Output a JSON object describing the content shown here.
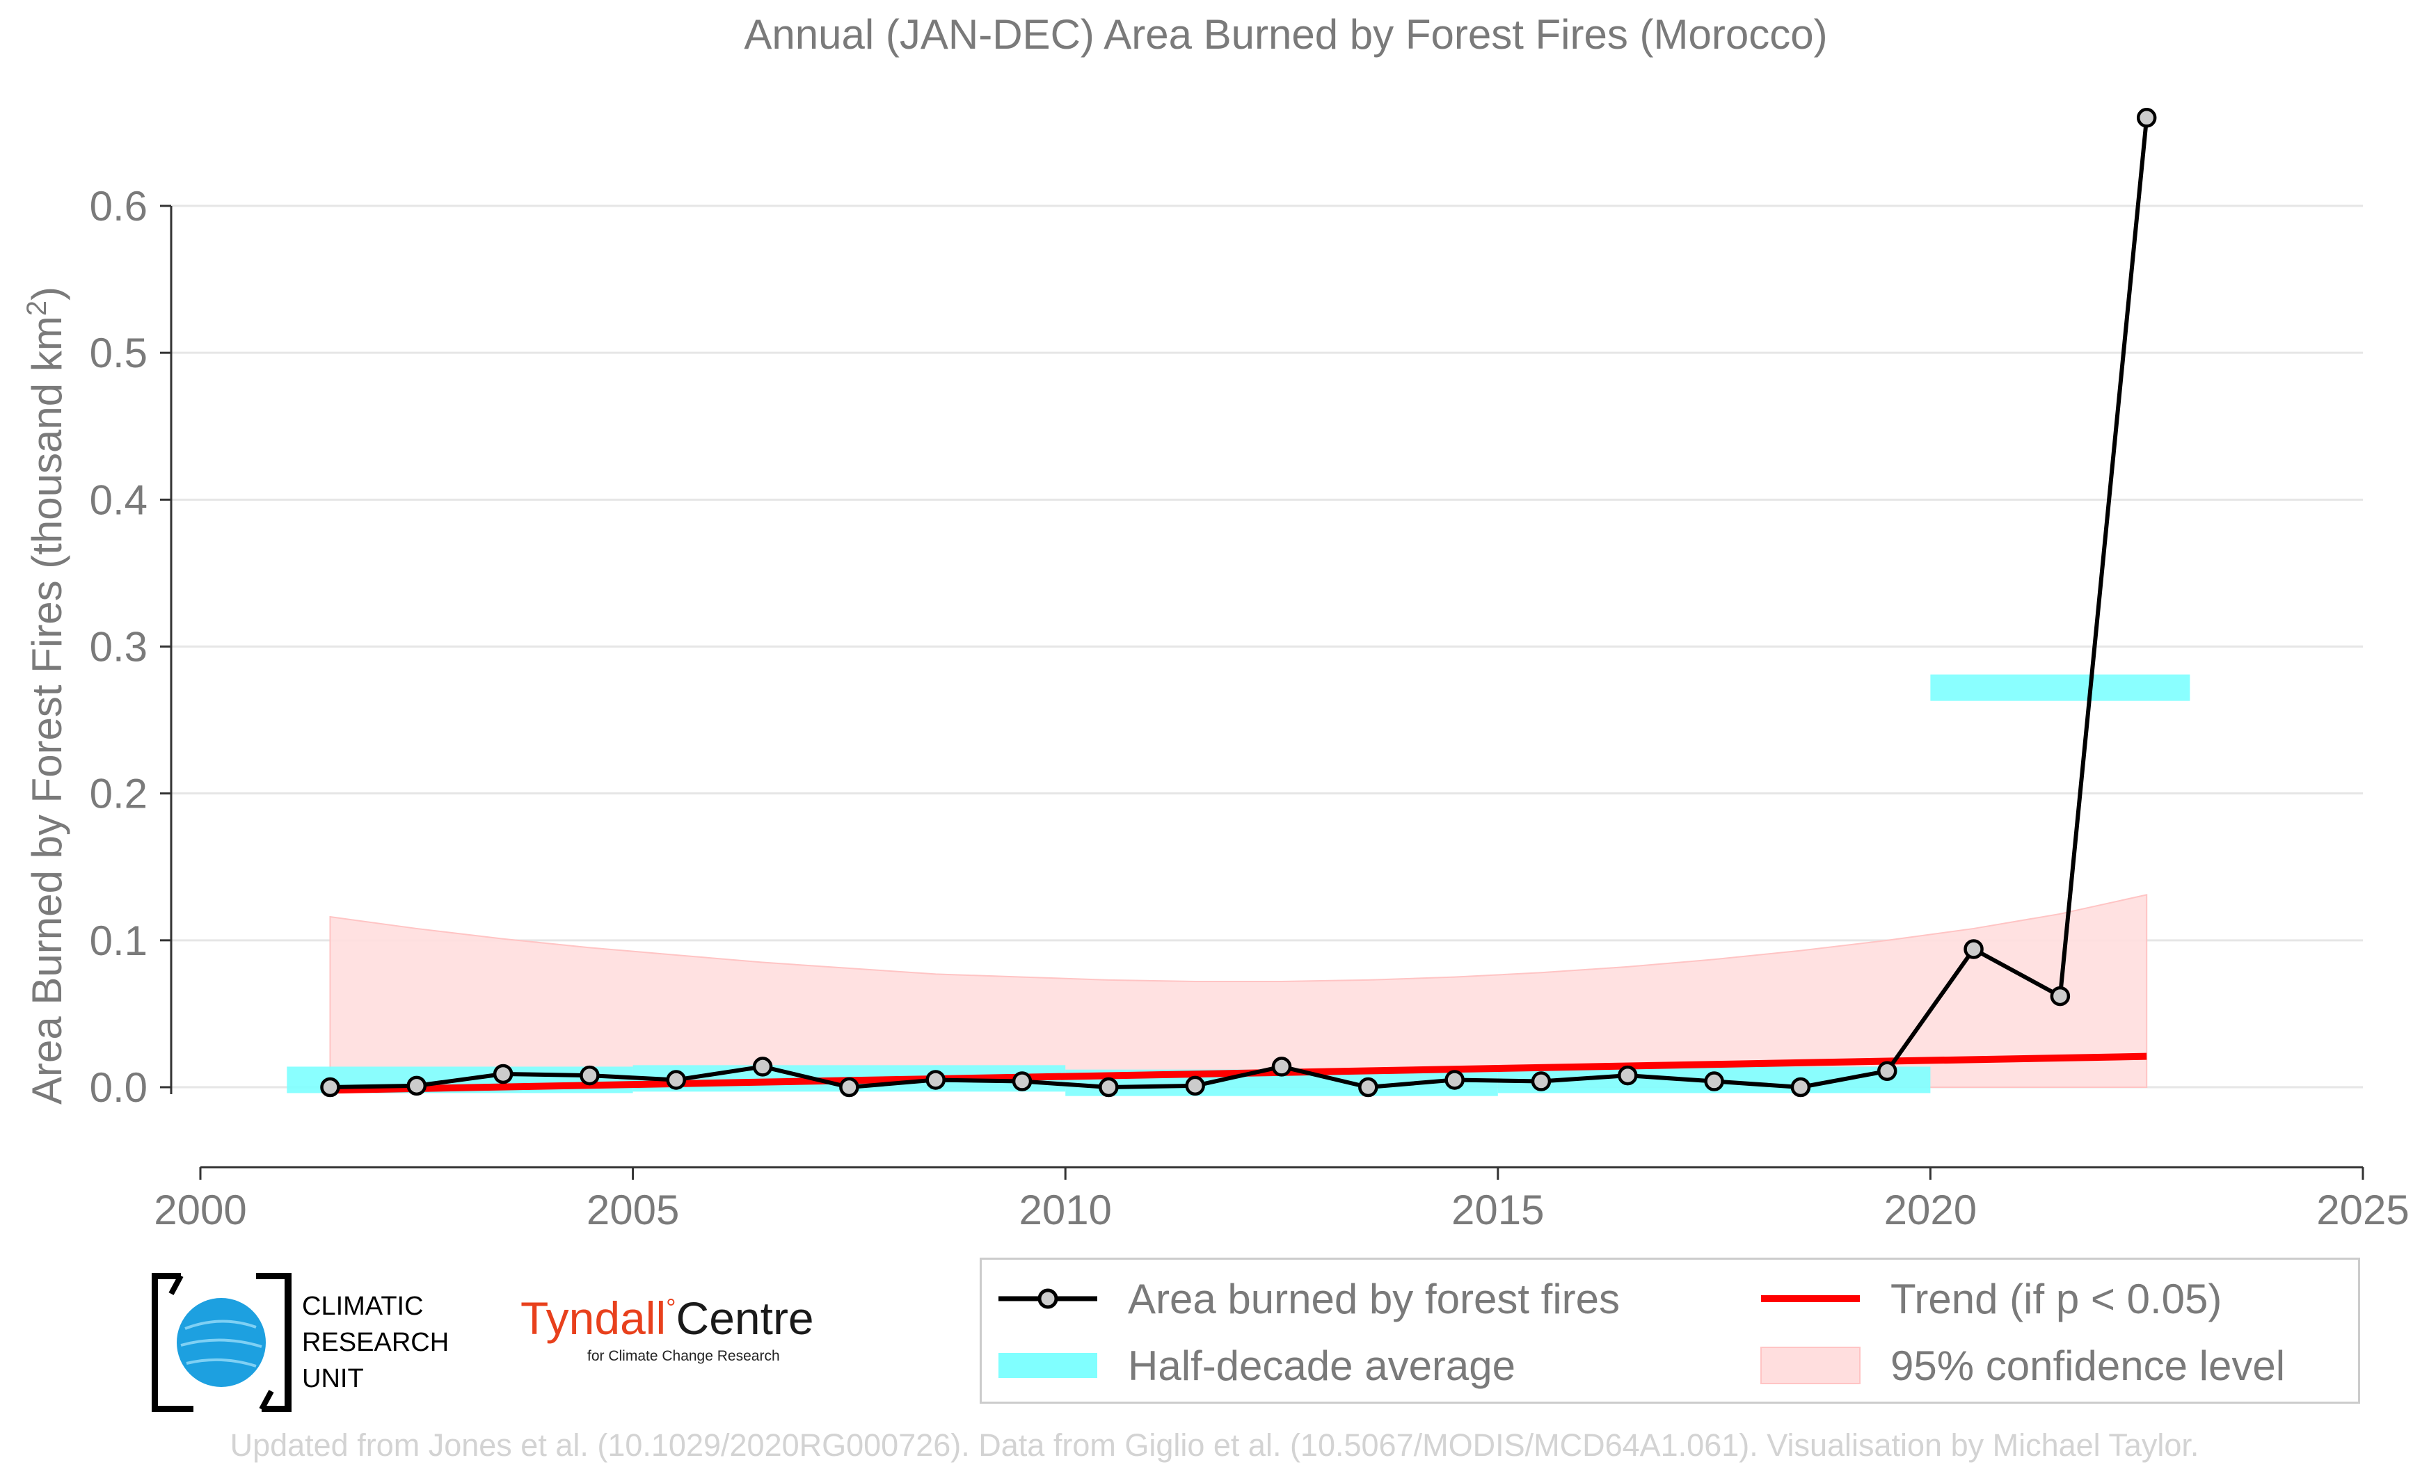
{
  "chart_data": {
    "type": "line",
    "title": "Annual (JAN-DEC) Area Burned by Forest Fires (Morocco)",
    "ylabel_main": "Area Burned by Forest Fires (thousand km",
    "ylabel_sup": "2",
    "ylabel_close": ")",
    "xlabel": "",
    "xlim": [
      2000,
      2025
    ],
    "ylim": [
      -0.055,
      0.68
    ],
    "x_ticks": [
      2000,
      2005,
      2010,
      2015,
      2020,
      2025
    ],
    "y_ticks": [
      0.0,
      0.1,
      0.2,
      0.3,
      0.4,
      0.5,
      0.6
    ],
    "y_tick_labels": [
      "0.0",
      "0.1",
      "0.2",
      "0.3",
      "0.4",
      "0.5",
      "0.6"
    ],
    "grid": "horizontal",
    "series": [
      {
        "name": "Area burned by forest fires",
        "color": "#000000",
        "marker_fill": "#cccccc",
        "x": [
          2001.5,
          2002.5,
          2003.5,
          2004.5,
          2005.5,
          2006.5,
          2007.5,
          2008.5,
          2009.5,
          2010.5,
          2011.5,
          2012.5,
          2013.5,
          2014.5,
          2015.5,
          2016.5,
          2017.5,
          2018.5,
          2019.5,
          2020.5,
          2021.5,
          2022.5
        ],
        "values": [
          0.0,
          0.001,
          0.009,
          0.008,
          0.005,
          0.014,
          0.0,
          0.005,
          0.004,
          0.0,
          0.001,
          0.014,
          0.0,
          0.005,
          0.004,
          0.008,
          0.004,
          0.0,
          0.011,
          0.094,
          0.062,
          0.66
        ]
      }
    ],
    "half_decade_average": {
      "name": "Half-decade average",
      "color": "#80ffff",
      "segments": [
        {
          "x0": 2001,
          "x1": 2005,
          "y": 0.005
        },
        {
          "x0": 2005,
          "x1": 2010,
          "y": 0.006
        },
        {
          "x0": 2010,
          "x1": 2015,
          "y": 0.003
        },
        {
          "x0": 2015,
          "x1": 2020,
          "y": 0.005
        },
        {
          "x0": 2020,
          "x1": 2023,
          "y": 0.272
        }
      ]
    },
    "trend": {
      "name": "Trend (if p < 0.05)",
      "color": "#ff0000",
      "x0": 2001.5,
      "y0": -0.002,
      "x1": 2022.5,
      "y1": 0.021
    },
    "confidence_band": {
      "name": "95% confidence level",
      "color": "#ffcccc",
      "x": [
        2001.5,
        2002.5,
        2003.5,
        2004.5,
        2005.5,
        2006.5,
        2007.5,
        2008.5,
        2009.5,
        2010.5,
        2011.5,
        2012.5,
        2013.5,
        2014.5,
        2015.5,
        2016.5,
        2017.5,
        2018.5,
        2019.5,
        2020.5,
        2021.5,
        2022.5
      ],
      "upper": [
        0.116,
        0.108,
        0.101,
        0.095,
        0.09,
        0.085,
        0.081,
        0.077,
        0.075,
        0.073,
        0.072,
        0.072,
        0.073,
        0.075,
        0.078,
        0.082,
        0.087,
        0.093,
        0.1,
        0.108,
        0.118,
        0.131
      ],
      "lower": [
        0.0,
        0.0,
        0.0,
        0.0,
        0.0,
        0.0,
        0.0,
        0.0,
        0.0,
        0.0,
        0.0,
        0.0,
        0.0,
        0.0,
        0.0,
        0.0,
        0.0,
        0.0,
        0.0,
        0.0,
        0.0,
        0.0
      ]
    },
    "legend_position": "bottom-right"
  },
  "legend": {
    "series": "Area burned by forest fires",
    "half_decade": "Half-decade average",
    "trend": "Trend (if p < 0.05)",
    "confidence": "95% confidence level"
  },
  "logos": {
    "cru_line1": "CLIMATIC",
    "cru_line2": "RESEARCH",
    "cru_line3": "UNIT",
    "tyndall_name": "Tyndall",
    "tyndall_degree": "°",
    "tyndall_centre": "Centre",
    "tyndall_sub": "for Climate Change Research"
  },
  "footer": "Updated from Jones et al. (10.1029/2020RG000726). Data from Giglio et al. (10.5067/MODIS/MCD64A1.061). Visualisation by Michael Taylor."
}
